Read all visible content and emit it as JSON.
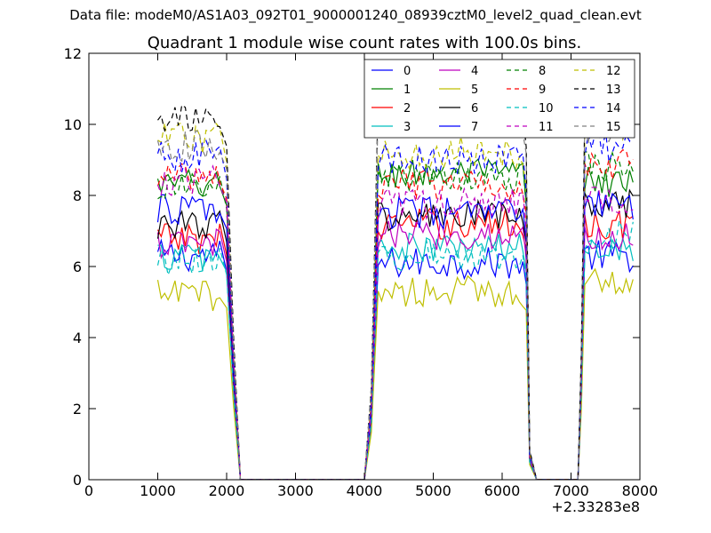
{
  "figure": {
    "suptitle": "Data file: modeM0/AS1A03_092T01_9000001240_08939cztM0_level2_quad_clean.evt"
  },
  "chart_data": {
    "type": "line",
    "title": "Quadrant 1 module wise count rates with 100.0s bins.",
    "xlabel": "",
    "ylabel": "",
    "x_offset_label": "+2.33283e8",
    "xlim": [
      0,
      8000
    ],
    "ylim": [
      0,
      12
    ],
    "xticks": [
      0,
      1000,
      2000,
      3000,
      4000,
      5000,
      6000,
      7000,
      8000
    ],
    "yticks": [
      0,
      2,
      4,
      6,
      8,
      10,
      12
    ],
    "grid": false,
    "legend": {
      "placement": "top-right",
      "columns": 4
    },
    "segments": [
      {
        "x_start": 1000,
        "x_end": 1900
      },
      {
        "x_start": 4200,
        "x_end": 6300
      },
      {
        "x_start": 7200,
        "x_end": 7900
      }
    ],
    "drop_points": [
      {
        "x": 2000,
        "frac": 0.93
      },
      {
        "x": 2100,
        "frac": 0.4
      },
      {
        "x": 2200,
        "frac": 0.0
      },
      {
        "x": 4000,
        "frac": 0.0
      },
      {
        "x": 4100,
        "frac": 0.25
      },
      {
        "x": 6400,
        "frac": 0.08
      },
      {
        "x": 6500,
        "frac": 0.0
      },
      {
        "x": 7100,
        "frac": 0.0
      },
      {
        "x": 7150,
        "frac": 0.35
      }
    ],
    "series": [
      {
        "name": "0",
        "color": "#0000ff",
        "dash": "solid",
        "levels": [
          6.3,
          6.1,
          6.3
        ]
      },
      {
        "name": "1",
        "color": "#008000",
        "dash": "solid",
        "levels": [
          8.3,
          8.6,
          8.4
        ]
      },
      {
        "name": "2",
        "color": "#ff0000",
        "dash": "solid",
        "levels": [
          6.8,
          7.2,
          7.2
        ]
      },
      {
        "name": "3",
        "color": "#00bfbf",
        "dash": "solid",
        "levels": [
          6.3,
          6.5,
          6.6
        ]
      },
      {
        "name": "4",
        "color": "#bf00bf",
        "dash": "solid",
        "levels": [
          6.6,
          6.9,
          6.8
        ]
      },
      {
        "name": "5",
        "color": "#bfbf00",
        "dash": "solid",
        "levels": [
          5.2,
          5.3,
          5.6
        ]
      },
      {
        "name": "6",
        "color": "#000000",
        "dash": "solid",
        "levels": [
          7.2,
          7.4,
          7.7
        ]
      },
      {
        "name": "7",
        "color": "#0000ff",
        "dash": "solid",
        "levels": [
          7.6,
          7.5,
          7.7
        ]
      },
      {
        "name": "8",
        "color": "#008000",
        "dash": "dashed",
        "levels": [
          8.2,
          8.5,
          8.8
        ]
      },
      {
        "name": "9",
        "color": "#ff0000",
        "dash": "dashed",
        "levels": [
          8.5,
          8.3,
          8.9
        ]
      },
      {
        "name": "10",
        "color": "#00bfbf",
        "dash": "dashed",
        "levels": [
          6.2,
          6.3,
          6.9
        ]
      },
      {
        "name": "11",
        "color": "#bf00bf",
        "dash": "dashed",
        "levels": [
          8.4,
          7.8,
          7.9
        ]
      },
      {
        "name": "12",
        "color": "#bfbf00",
        "dash": "dashed",
        "levels": [
          9.6,
          9.2,
          10.0
        ]
      },
      {
        "name": "13",
        "color": "#000000",
        "dash": "dashed",
        "levels": [
          10.1,
          10.4,
          10.3
        ]
      },
      {
        "name": "14",
        "color": "#0000ff",
        "dash": "dashed",
        "levels": [
          9.1,
          9.0,
          9.4
        ]
      },
      {
        "name": "15",
        "color": "#808080",
        "dash": "dashed",
        "levels": [
          9.4,
          10.2,
          9.9
        ]
      }
    ]
  }
}
